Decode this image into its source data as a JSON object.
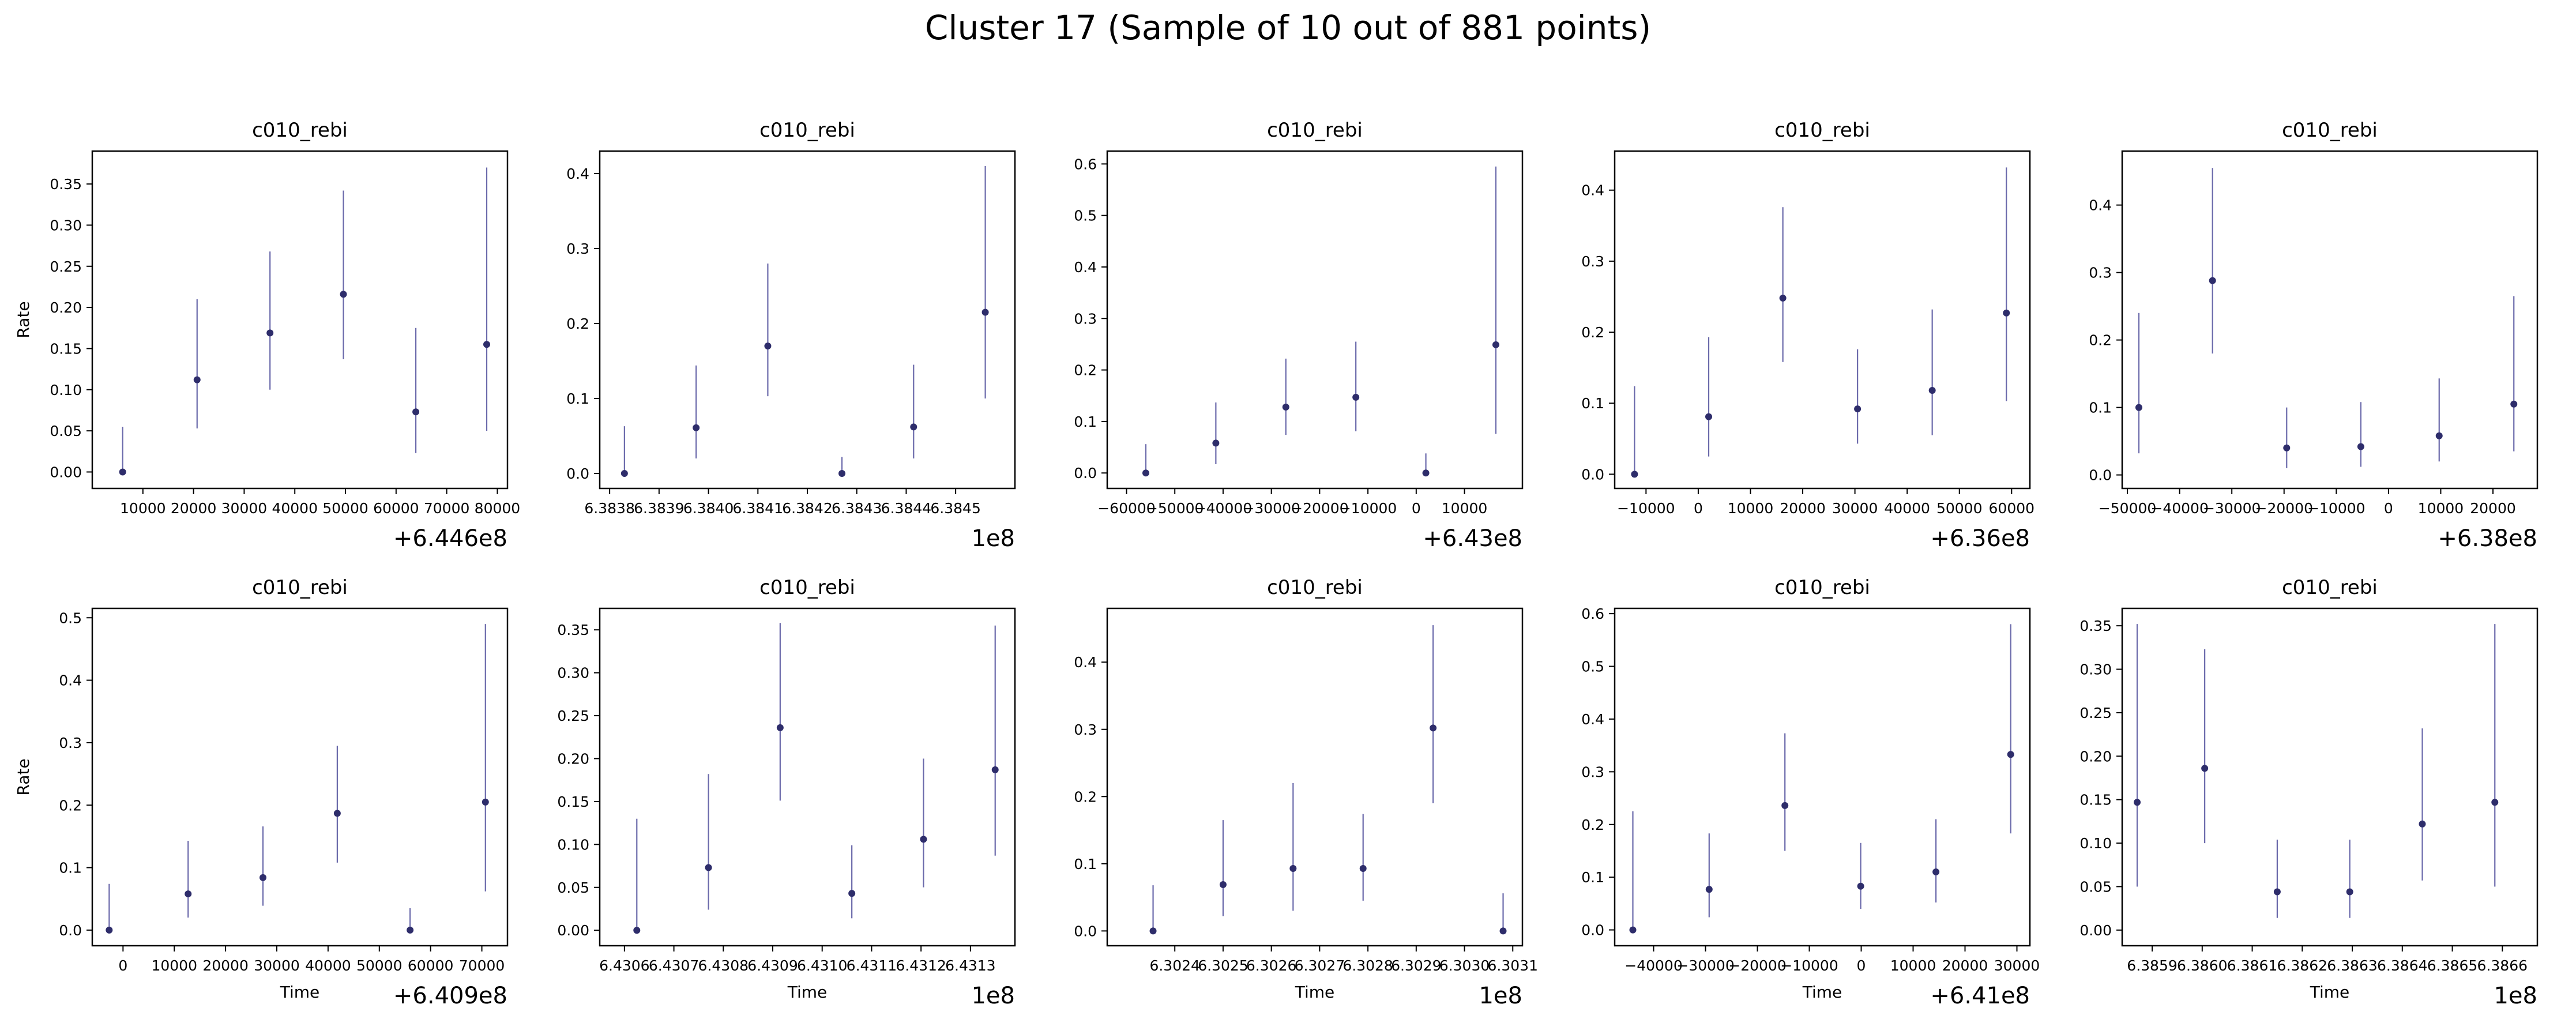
{
  "figure": {
    "title": "Cluster 17 (Sample of 10 out of 881 points)",
    "marker_color": "#2e2d6b",
    "errorbar_color": "#6b6aab"
  },
  "chart_data": [
    {
      "type": "scatter",
      "title": "c010_rebi",
      "xlabel": "",
      "ylabel": "Rate",
      "offset_text": "+6.446e8",
      "xlim": [
        0,
        82000
      ],
      "ylim": [
        -0.02,
        0.39
      ],
      "xticks": [
        10000,
        20000,
        30000,
        40000,
        50000,
        60000,
        70000,
        80000
      ],
      "xticklabels": [
        "10000",
        "20000",
        "30000",
        "40000",
        "50000",
        "60000",
        "70000",
        "80000"
      ],
      "yticks": [
        0,
        0.05,
        0.1,
        0.15,
        0.2,
        0.25,
        0.3,
        0.35
      ],
      "yticklabels": [
        "0.00",
        "0.05",
        "0.10",
        "0.15",
        "0.20",
        "0.25",
        "0.30",
        "0.35"
      ],
      "points": [
        {
          "x": 6000,
          "y": 0,
          "lo": 0,
          "hi": 0.055
        },
        {
          "x": 20700,
          "y": 0.112,
          "lo": 0.053,
          "hi": 0.21
        },
        {
          "x": 35100,
          "y": 0.169,
          "lo": 0.1,
          "hi": 0.268
        },
        {
          "x": 49600,
          "y": 0.216,
          "lo": 0.137,
          "hi": 0.342
        },
        {
          "x": 63900,
          "y": 0.073,
          "lo": 0.023,
          "hi": 0.175
        },
        {
          "x": 77900,
          "y": 0.155,
          "lo": 0.05,
          "hi": 0.37
        }
      ]
    },
    {
      "type": "scatter",
      "title": "c010_rebi",
      "xlabel": "",
      "ylabel": "",
      "offset_text": "1e8",
      "xlim": [
        6.38378,
        6.38462
      ],
      "ylim": [
        -0.02,
        0.43
      ],
      "xticks": [
        6.3838,
        6.3839,
        6.384,
        6.3841,
        6.3842,
        6.3843,
        6.3844,
        6.3845
      ],
      "xticklabels": [
        "6.3838",
        "6.3839",
        "6.3840",
        "6.3841",
        "6.3842",
        "6.3843",
        "6.3844",
        "6.3845"
      ],
      "yticks": [
        0,
        0.1,
        0.2,
        0.3,
        0.4
      ],
      "yticklabels": [
        "0.0",
        "0.1",
        "0.2",
        "0.3",
        "0.4"
      ],
      "points": [
        {
          "x": 6.38383,
          "y": 0,
          "lo": 0,
          "hi": 0.063
        },
        {
          "x": 6.383975,
          "y": 0.061,
          "lo": 0.02,
          "hi": 0.144
        },
        {
          "x": 6.38412,
          "y": 0.17,
          "lo": 0.103,
          "hi": 0.28
        },
        {
          "x": 6.38427,
          "y": 0,
          "lo": 0,
          "hi": 0.022
        },
        {
          "x": 6.384415,
          "y": 0.062,
          "lo": 0.02,
          "hi": 0.145
        },
        {
          "x": 6.38456,
          "y": 0.215,
          "lo": 0.1,
          "hi": 0.41
        }
      ]
    },
    {
      "type": "scatter",
      "title": "c010_rebi",
      "xlabel": "",
      "ylabel": "",
      "offset_text": "+6.43e8",
      "xlim": [
        -64000,
        22000
      ],
      "ylim": [
        -0.03,
        0.625
      ],
      "xticks": [
        -60000,
        -50000,
        -40000,
        -30000,
        -20000,
        -10000,
        0,
        10000
      ],
      "xticklabels": [
        "−60000",
        "−50000",
        "−40000",
        "−30000",
        "−20000",
        "−10000",
        "0",
        "10000"
      ],
      "yticks": [
        0,
        0.1,
        0.2,
        0.3,
        0.4,
        0.5,
        0.6
      ],
      "yticklabels": [
        "0.0",
        "0.1",
        "0.2",
        "0.3",
        "0.4",
        "0.5",
        "0.6"
      ],
      "points": [
        {
          "x": -56000,
          "y": 0,
          "lo": 0,
          "hi": 0.056
        },
        {
          "x": -41500,
          "y": 0.058,
          "lo": 0.017,
          "hi": 0.137
        },
        {
          "x": -27000,
          "y": 0.128,
          "lo": 0.074,
          "hi": 0.222
        },
        {
          "x": -12500,
          "y": 0.147,
          "lo": 0.081,
          "hi": 0.255
        },
        {
          "x": 2000,
          "y": 0,
          "lo": 0,
          "hi": 0.038
        },
        {
          "x": 16500,
          "y": 0.249,
          "lo": 0.076,
          "hi": 0.595
        }
      ]
    },
    {
      "type": "scatter",
      "title": "c010_rebi",
      "xlabel": "",
      "ylabel": "",
      "offset_text": "+6.36e8",
      "xlim": [
        -16000,
        63500
      ],
      "ylim": [
        -0.02,
        0.455
      ],
      "xticks": [
        -10000,
        0,
        10000,
        20000,
        30000,
        40000,
        50000,
        60000
      ],
      "xticklabels": [
        "−10000",
        "0",
        "10000",
        "20000",
        "30000",
        "40000",
        "50000",
        "60000"
      ],
      "yticks": [
        0,
        0.1,
        0.2,
        0.3,
        0.4
      ],
      "yticklabels": [
        "0.0",
        "0.1",
        "0.2",
        "0.3",
        "0.4"
      ],
      "points": [
        {
          "x": -12200,
          "y": 0,
          "lo": 0,
          "hi": 0.124
        },
        {
          "x": 2000,
          "y": 0.081,
          "lo": 0.025,
          "hi": 0.193
        },
        {
          "x": 16200,
          "y": 0.248,
          "lo": 0.158,
          "hi": 0.376
        },
        {
          "x": 30500,
          "y": 0.092,
          "lo": 0.043,
          "hi": 0.176
        },
        {
          "x": 44800,
          "y": 0.118,
          "lo": 0.055,
          "hi": 0.232
        },
        {
          "x": 59000,
          "y": 0.227,
          "lo": 0.103,
          "hi": 0.432
        }
      ]
    },
    {
      "type": "scatter",
      "title": "c010_rebi",
      "xlabel": "",
      "ylabel": "",
      "offset_text": "+6.38e8",
      "xlim": [
        -51000,
        28500
      ],
      "ylim": [
        -0.02,
        0.48
      ],
      "xticks": [
        -50000,
        -40000,
        -30000,
        -20000,
        -10000,
        0,
        10000,
        20000
      ],
      "xticklabels": [
        "−50000",
        "−40000",
        "−30000",
        "−20000",
        "−10000",
        "0",
        "10000",
        "20000"
      ],
      "yticks": [
        0,
        0.1,
        0.2,
        0.3,
        0.4
      ],
      "yticklabels": [
        "0.0",
        "0.1",
        "0.2",
        "0.3",
        "0.4"
      ],
      "points": [
        {
          "x": -47800,
          "y": 0.1,
          "lo": 0.032,
          "hi": 0.24
        },
        {
          "x": -33700,
          "y": 0.288,
          "lo": 0.18,
          "hi": 0.455
        },
        {
          "x": -19500,
          "y": 0.04,
          "lo": 0.01,
          "hi": 0.1
        },
        {
          "x": -5300,
          "y": 0.042,
          "lo": 0.012,
          "hi": 0.108
        },
        {
          "x": 9700,
          "y": 0.058,
          "lo": 0.02,
          "hi": 0.143
        },
        {
          "x": 24000,
          "y": 0.105,
          "lo": 0.035,
          "hi": 0.265
        }
      ]
    },
    {
      "type": "scatter",
      "title": "c010_rebi",
      "xlabel": "Time",
      "ylabel": "Rate",
      "offset_text": "+6.409e8",
      "xlim": [
        -6000,
        75000
      ],
      "ylim": [
        -0.025,
        0.515
      ],
      "xticks": [
        0,
        10000,
        20000,
        30000,
        40000,
        50000,
        60000,
        70000
      ],
      "xticklabels": [
        "0",
        "10000",
        "20000",
        "30000",
        "40000",
        "50000",
        "60000",
        "70000"
      ],
      "yticks": [
        0,
        0.1,
        0.2,
        0.3,
        0.4,
        0.5
      ],
      "yticklabels": [
        "0.0",
        "0.1",
        "0.2",
        "0.3",
        "0.4",
        "0.5"
      ],
      "points": [
        {
          "x": -2700,
          "y": 0,
          "lo": 0,
          "hi": 0.074
        },
        {
          "x": 12700,
          "y": 0.058,
          "lo": 0.02,
          "hi": 0.143
        },
        {
          "x": 27300,
          "y": 0.084,
          "lo": 0.039,
          "hi": 0.166
        },
        {
          "x": 41800,
          "y": 0.187,
          "lo": 0.108,
          "hi": 0.295
        },
        {
          "x": 56000,
          "y": 0,
          "lo": 0,
          "hi": 0.035
        },
        {
          "x": 70700,
          "y": 0.205,
          "lo": 0.062,
          "hi": 0.49
        }
      ]
    },
    {
      "type": "scatter",
      "title": "c010_rebi",
      "xlabel": "Time",
      "ylabel": "",
      "offset_text": "1e8",
      "xlim": [
        6.43055,
        6.43139
      ],
      "ylim": [
        -0.018,
        0.375
      ],
      "xticks": [
        6.4306,
        6.4307,
        6.4308,
        6.4309,
        6.431,
        6.4311,
        6.4312,
        6.4313
      ],
      "xticklabels": [
        "6.4306",
        "6.4307",
        "6.4308",
        "6.4309",
        "6.4310",
        "6.4311",
        "6.4312",
        "6.4313"
      ],
      "yticks": [
        0,
        0.05,
        0.1,
        0.15,
        0.2,
        0.25,
        0.3,
        0.35
      ],
      "yticklabels": [
        "0.00",
        "0.05",
        "0.10",
        "0.15",
        "0.20",
        "0.25",
        "0.30",
        "0.35"
      ],
      "points": [
        {
          "x": 6.430625,
          "y": 0,
          "lo": 0,
          "hi": 0.13
        },
        {
          "x": 6.43077,
          "y": 0.073,
          "lo": 0.024,
          "hi": 0.182
        },
        {
          "x": 6.430915,
          "y": 0.236,
          "lo": 0.151,
          "hi": 0.358
        },
        {
          "x": 6.43106,
          "y": 0.043,
          "lo": 0.014,
          "hi": 0.099
        },
        {
          "x": 6.431205,
          "y": 0.106,
          "lo": 0.05,
          "hi": 0.2
        },
        {
          "x": 6.43135,
          "y": 0.187,
          "lo": 0.087,
          "hi": 0.355
        }
      ]
    },
    {
      "type": "scatter",
      "title": "c010_rebi",
      "xlabel": "Time",
      "ylabel": "",
      "offset_text": "1e8",
      "xlim": [
        6.30226,
        6.30312
      ],
      "ylim": [
        -0.022,
        0.48
      ],
      "xticks": [
        6.3024,
        6.3025,
        6.3026,
        6.3027,
        6.3028,
        6.3029,
        6.303,
        6.3031
      ],
      "xticklabels": [
        "6.3024",
        "6.3025",
        "6.3026",
        "6.3027",
        "6.3028",
        "6.3029",
        "6.3030",
        "6.3031"
      ],
      "yticks": [
        0,
        0.1,
        0.2,
        0.3,
        0.4
      ],
      "yticklabels": [
        "0.0",
        "0.1",
        "0.2",
        "0.3",
        "0.4"
      ],
      "points": [
        {
          "x": 6.302355,
          "y": 0,
          "lo": 0,
          "hi": 0.068
        },
        {
          "x": 6.3025,
          "y": 0.069,
          "lo": 0.022,
          "hi": 0.165
        },
        {
          "x": 6.302645,
          "y": 0.093,
          "lo": 0.03,
          "hi": 0.22
        },
        {
          "x": 6.30279,
          "y": 0.093,
          "lo": 0.045,
          "hi": 0.174
        },
        {
          "x": 6.302935,
          "y": 0.302,
          "lo": 0.19,
          "hi": 0.455
        },
        {
          "x": 6.30308,
          "y": 0,
          "lo": 0,
          "hi": 0.056
        }
      ]
    },
    {
      "type": "scatter",
      "title": "c010_rebi",
      "xlabel": "Time",
      "ylabel": "",
      "offset_text": "+6.41e8",
      "xlim": [
        -47500,
        32500
      ],
      "ylim": [
        -0.03,
        0.61
      ],
      "xticks": [
        -40000,
        -30000,
        -20000,
        -10000,
        0,
        10000,
        20000,
        30000
      ],
      "xticklabels": [
        "−40000",
        "−30000",
        "−20000",
        "−10000",
        "0",
        "10000",
        "20000",
        "30000"
      ],
      "yticks": [
        0,
        0.1,
        0.2,
        0.3,
        0.4,
        0.5,
        0.6
      ],
      "yticklabels": [
        "0.0",
        "0.1",
        "0.2",
        "0.3",
        "0.4",
        "0.5",
        "0.6"
      ],
      "points": [
        {
          "x": -44000,
          "y": 0,
          "lo": 0,
          "hi": 0.225
        },
        {
          "x": -29300,
          "y": 0.077,
          "lo": 0.024,
          "hi": 0.183
        },
        {
          "x": -14700,
          "y": 0.236,
          "lo": 0.15,
          "hi": 0.373
        },
        {
          "x": -100,
          "y": 0.083,
          "lo": 0.04,
          "hi": 0.165
        },
        {
          "x": 14400,
          "y": 0.11,
          "lo": 0.052,
          "hi": 0.21
        },
        {
          "x": 28800,
          "y": 0.333,
          "lo": 0.183,
          "hi": 0.58
        }
      ]
    },
    {
      "type": "scatter",
      "title": "c010_rebi",
      "xlabel": "Time",
      "ylabel": "",
      "offset_text": "1e8",
      "xlim": [
        6.38584,
        6.38667
      ],
      "ylim": [
        -0.018,
        0.37
      ],
      "xticks": [
        6.3859,
        6.386,
        6.3861,
        6.3862,
        6.3863,
        6.3864,
        6.3865,
        6.3866
      ],
      "xticklabels": [
        "6.3859",
        "6.3860",
        "6.3861",
        "6.3862",
        "6.3863",
        "6.3864",
        "6.3865",
        "6.3866"
      ],
      "yticks": [
        0,
        0.05,
        0.1,
        0.15,
        0.2,
        0.25,
        0.3,
        0.35
      ],
      "yticklabels": [
        "0.00",
        "0.05",
        "0.10",
        "0.15",
        "0.20",
        "0.25",
        "0.30",
        "0.35"
      ],
      "points": [
        {
          "x": 6.38587,
          "y": 0.147,
          "lo": 0.05,
          "hi": 0.352
        },
        {
          "x": 6.386005,
          "y": 0.186,
          "lo": 0.1,
          "hi": 0.323
        },
        {
          "x": 6.38615,
          "y": 0.044,
          "lo": 0.014,
          "hi": 0.104
        },
        {
          "x": 6.386295,
          "y": 0.044,
          "lo": 0.014,
          "hi": 0.104
        },
        {
          "x": 6.38644,
          "y": 0.122,
          "lo": 0.057,
          "hi": 0.232
        },
        {
          "x": 6.386585,
          "y": 0.147,
          "lo": 0.05,
          "hi": 0.352
        }
      ]
    }
  ]
}
